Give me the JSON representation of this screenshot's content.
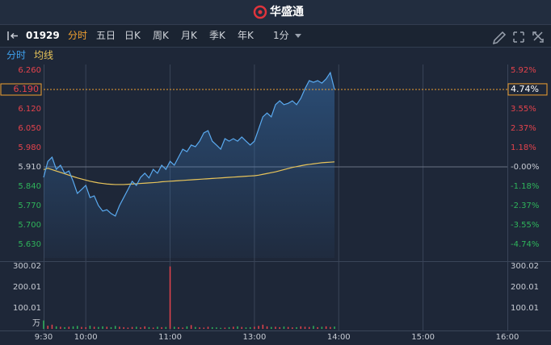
{
  "header": {
    "title": "华盛通"
  },
  "toolbar": {
    "code": "01929",
    "tabs": [
      "分时",
      "五日",
      "日K",
      "周K",
      "月K",
      "季K",
      "年K"
    ],
    "active_tab": 0,
    "interval": "1分"
  },
  "chart_data": {
    "type": "line",
    "x": [
      0,
      3,
      6,
      9,
      12,
      15,
      18,
      21,
      24,
      27,
      30,
      33,
      36,
      39,
      42,
      45,
      48,
      51,
      54,
      57,
      60,
      63,
      66,
      69,
      72,
      75,
      78,
      81,
      84,
      87,
      90,
      93,
      96,
      99,
      102,
      105,
      108,
      111,
      114,
      117,
      120,
      123,
      126,
      129,
      132,
      135,
      138,
      141,
      144,
      147,
      150,
      153,
      156,
      159,
      162,
      165,
      168,
      171,
      174,
      177,
      180,
      183,
      186,
      189,
      192,
      195,
      198,
      201,
      204,
      207
    ],
    "xlim": [
      0,
      330
    ],
    "xticks": [
      {
        "value": 0,
        "label": "9:30"
      },
      {
        "value": 30,
        "label": "10:00"
      },
      {
        "value": 90,
        "label": "11:00"
      },
      {
        "value": 150,
        "label": "13:00"
      },
      {
        "value": 210,
        "label": "14:00"
      },
      {
        "value": 270,
        "label": "15:00"
      },
      {
        "value": 330,
        "label": "16:00"
      }
    ],
    "ylim": [
      5.63,
      6.26
    ],
    "yticks": [
      {
        "value": 6.26,
        "label": "6.260"
      },
      {
        "value": 6.12,
        "label": "6.120"
      },
      {
        "value": 6.05,
        "label": "6.050"
      },
      {
        "value": 5.98,
        "label": "5.980"
      },
      {
        "value": 5.91,
        "label": "5.910"
      },
      {
        "value": 5.84,
        "label": "5.840"
      },
      {
        "value": 5.77,
        "label": "5.770"
      },
      {
        "value": 5.7,
        "label": "5.700"
      },
      {
        "value": 5.63,
        "label": "5.630"
      }
    ],
    "y2lim": [
      -4.74,
      5.92
    ],
    "y2ticks": [
      {
        "value": 5.92,
        "label": "5.92%"
      },
      {
        "value": 3.55,
        "label": "3.55%"
      },
      {
        "value": 2.37,
        "label": "2.37%"
      },
      {
        "value": 1.18,
        "label": "1.18%"
      },
      {
        "value": 0,
        "label": "-0.00%"
      },
      {
        "value": -1.18,
        "label": "-1.18%"
      },
      {
        "value": -2.37,
        "label": "-2.37%"
      },
      {
        "value": -3.55,
        "label": "-3.55%"
      },
      {
        "value": -4.74,
        "label": "-4.74%"
      }
    ],
    "baseline": 5.91,
    "last_price": {
      "value": 6.19,
      "label": "6.190"
    },
    "last_change": {
      "value": 4.74,
      "label": "4.74%"
    },
    "up_color": "#e5434c",
    "down_color": "#2fb45b",
    "flat_color": "#c8ccd4",
    "series": [
      {
        "name": "分时",
        "color": "#5aaaf0",
        "values": [
          5.872,
          5.93,
          5.945,
          5.901,
          5.916,
          5.887,
          5.895,
          5.858,
          5.814,
          5.828,
          5.843,
          5.799,
          5.805,
          5.77,
          5.75,
          5.755,
          5.741,
          5.732,
          5.77,
          5.799,
          5.828,
          5.858,
          5.843,
          5.872,
          5.887,
          5.87,
          5.901,
          5.887,
          5.916,
          5.901,
          5.93,
          5.916,
          5.945,
          5.974,
          5.965,
          5.989,
          5.983,
          6.003,
          6.033,
          6.041,
          6.003,
          5.989,
          5.974,
          6.012,
          6.003,
          6.012,
          6.003,
          6.018,
          6.003,
          5.989,
          6.003,
          6.047,
          6.091,
          6.105,
          6.091,
          6.135,
          6.149,
          6.135,
          6.14,
          6.149,
          6.135,
          6.158,
          6.193,
          6.222,
          6.216,
          6.222,
          6.213,
          6.228,
          6.251,
          6.19
        ]
      },
      {
        "name": "均线",
        "color": "#e8c45a",
        "values": [
          5.9,
          5.905,
          5.9,
          5.895,
          5.89,
          5.885,
          5.88,
          5.875,
          5.87,
          5.866,
          5.862,
          5.858,
          5.855,
          5.852,
          5.85,
          5.848,
          5.847,
          5.846,
          5.846,
          5.846,
          5.847,
          5.848,
          5.849,
          5.85,
          5.851,
          5.852,
          5.853,
          5.854,
          5.856,
          5.857,
          5.858,
          5.859,
          5.86,
          5.861,
          5.862,
          5.863,
          5.864,
          5.865,
          5.866,
          5.867,
          5.868,
          5.869,
          5.87,
          5.871,
          5.872,
          5.873,
          5.874,
          5.875,
          5.876,
          5.877,
          5.878,
          5.88,
          5.883,
          5.886,
          5.889,
          5.892,
          5.896,
          5.9,
          5.904,
          5.908,
          5.911,
          5.914,
          5.917,
          5.919,
          5.921,
          5.923,
          5.925,
          5.926,
          5.927,
          5.928
        ]
      }
    ],
    "volume": {
      "unit": "万",
      "ylim": [
        0,
        300.02
      ],
      "yticks": [
        300.02,
        200.01,
        100.01
      ],
      "values": [
        40,
        15,
        20,
        12,
        10,
        8,
        10,
        12,
        14,
        9,
        8,
        15,
        10,
        9,
        12,
        10,
        8,
        14,
        10,
        8,
        6,
        9,
        10,
        7,
        12,
        8,
        6,
        10,
        8,
        9,
        298,
        10,
        8,
        6,
        12,
        18,
        9,
        7,
        6,
        10,
        8,
        7,
        5,
        6,
        8,
        10,
        12,
        9,
        7,
        8,
        10,
        14,
        20,
        12,
        9,
        10,
        8,
        11,
        9,
        7,
        8,
        12,
        10,
        9,
        14,
        8,
        10,
        12,
        9,
        11
      ]
    }
  }
}
